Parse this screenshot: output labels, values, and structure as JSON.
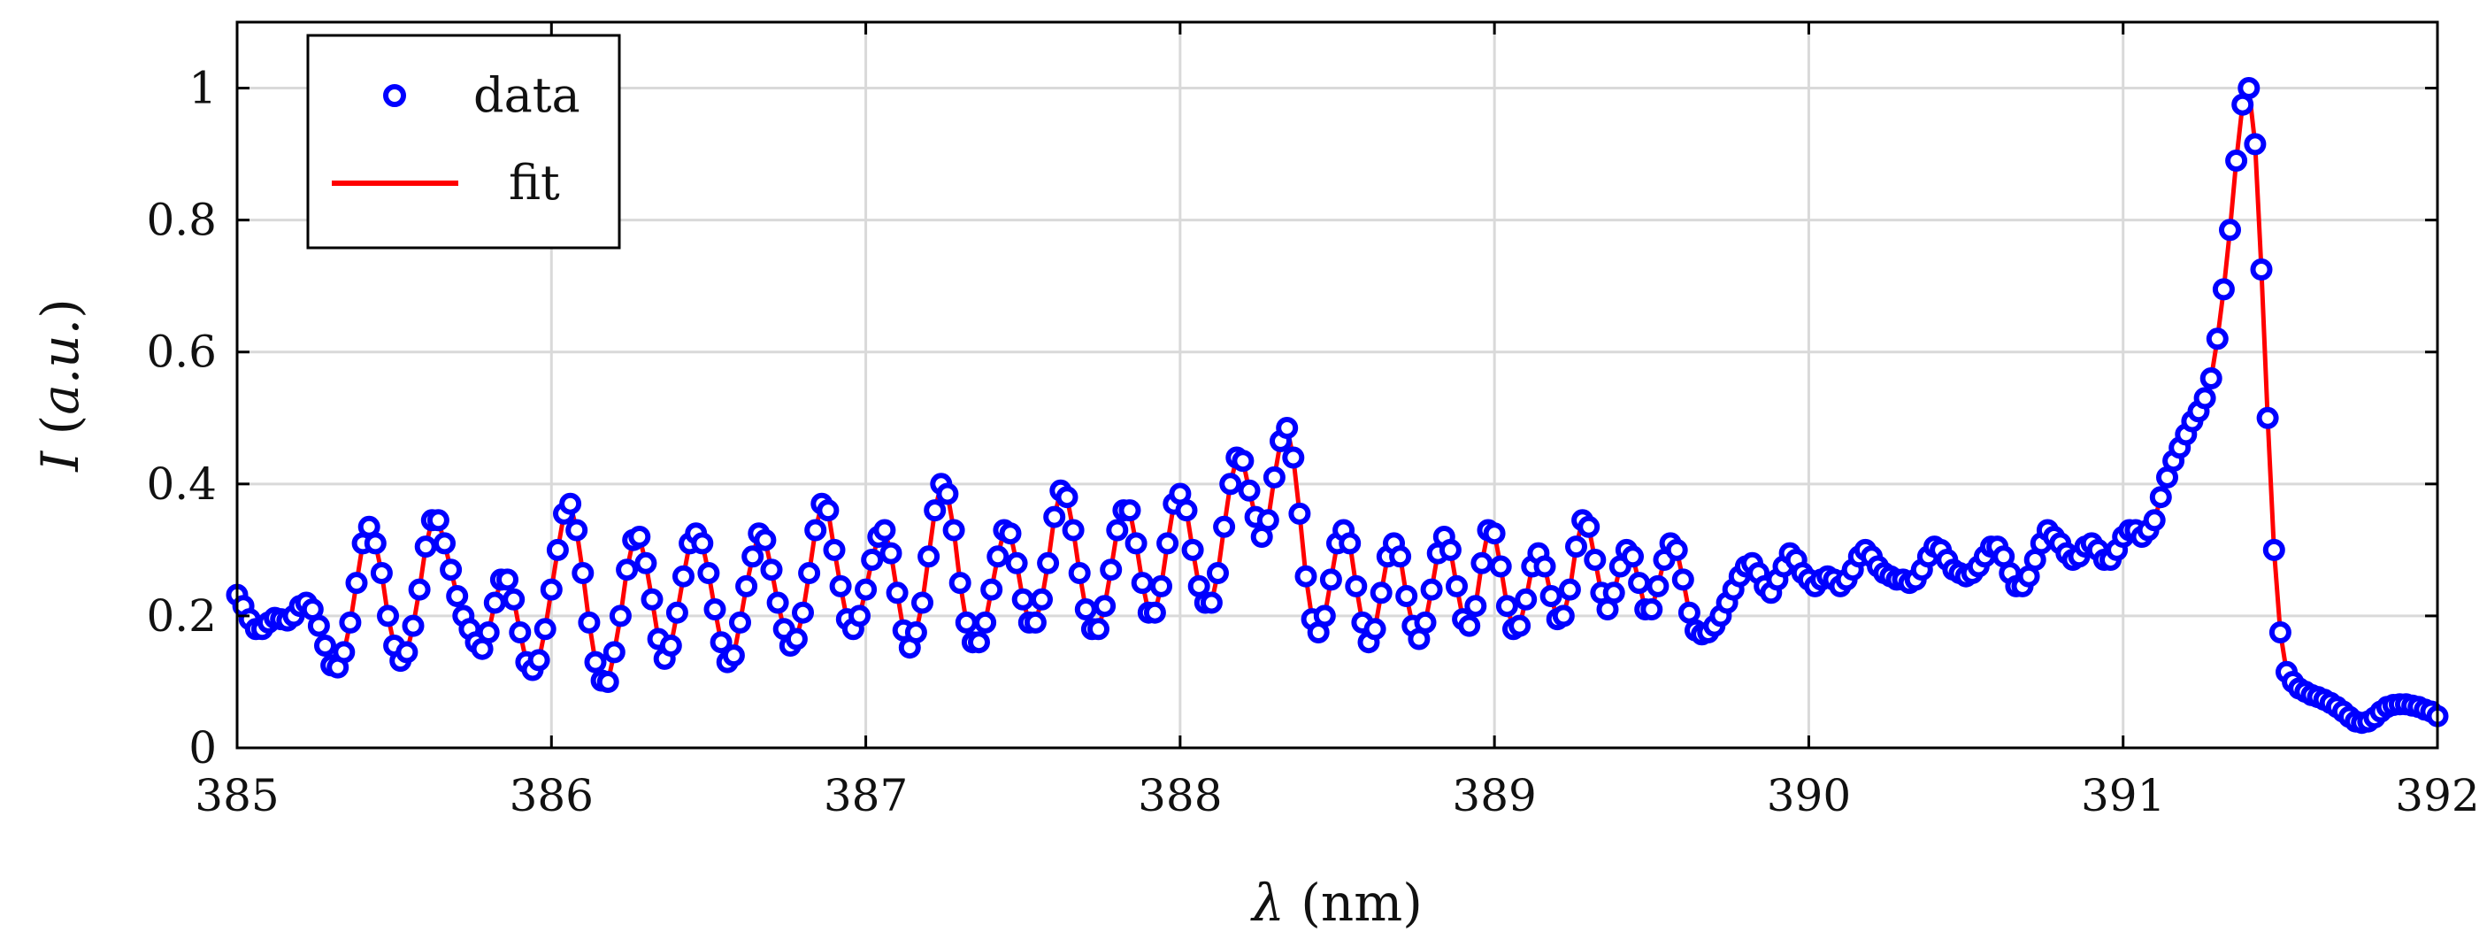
{
  "chart_data": {
    "type": "scatter",
    "xlabel": "λ (nm)",
    "xlabel_symbol": "λ",
    "xlabel_unit": " (nm)",
    "ylabel": "I (a.u.)",
    "ylabel_symbol": "I",
    "ylabel_unit_open": " (",
    "ylabel_unit_text": "a.u.",
    "ylabel_unit_close": ")",
    "xlim": [
      385,
      392
    ],
    "ylim": [
      0,
      1.1
    ],
    "x_ticks": [
      385,
      386,
      387,
      388,
      389,
      390,
      391,
      392
    ],
    "x_tick_labels": [
      "385",
      "386",
      "387",
      "388",
      "389",
      "390",
      "391",
      "392"
    ],
    "y_ticks": [
      0,
      0.2,
      0.4,
      0.6,
      0.8,
      1
    ],
    "y_tick_labels": [
      "0",
      "0.2",
      "0.4",
      "0.6",
      "0.8",
      "1"
    ],
    "grid": true,
    "legend_position": "top-left",
    "series": [
      {
        "name": "data",
        "style": "markers",
        "color": "#0000ff",
        "x": [
          385.0,
          385.02,
          385.04,
          385.06,
          385.08,
          385.1,
          385.12,
          385.14,
          385.16,
          385.18,
          385.2,
          385.22,
          385.24,
          385.26,
          385.28,
          385.3,
          385.32,
          385.34,
          385.36,
          385.38,
          385.4,
          385.42,
          385.44,
          385.46,
          385.48,
          385.5,
          385.52,
          385.54,
          385.56,
          385.58,
          385.6,
          385.62,
          385.64,
          385.66,
          385.68,
          385.7,
          385.72,
          385.74,
          385.76,
          385.78,
          385.8,
          385.82,
          385.84,
          385.86,
          385.88,
          385.9,
          385.92,
          385.94,
          385.96,
          385.98,
          386.0,
          386.02,
          386.04,
          386.06,
          386.08,
          386.1,
          386.12,
          386.14,
          386.16,
          386.18,
          386.2,
          386.22,
          386.24,
          386.26,
          386.28,
          386.3,
          386.32,
          386.34,
          386.36,
          386.38,
          386.4,
          386.42,
          386.44,
          386.46,
          386.48,
          386.5,
          386.52,
          386.54,
          386.56,
          386.58,
          386.6,
          386.62,
          386.64,
          386.66,
          386.68,
          386.7,
          386.72,
          386.74,
          386.76,
          386.78,
          386.8,
          386.82,
          386.84,
          386.86,
          386.88,
          386.9,
          386.92,
          386.94,
          386.96,
          386.98,
          387.0,
          387.02,
          387.04,
          387.06,
          387.08,
          387.1,
          387.12,
          387.14,
          387.16,
          387.18,
          387.2,
          387.22,
          387.24,
          387.26,
          387.28,
          387.3,
          387.32,
          387.34,
          387.36,
          387.38,
          387.4,
          387.42,
          387.44,
          387.46,
          387.48,
          387.5,
          387.52,
          387.54,
          387.56,
          387.58,
          387.6,
          387.62,
          387.64,
          387.66,
          387.68,
          387.7,
          387.72,
          387.74,
          387.76,
          387.78,
          387.8,
          387.82,
          387.84,
          387.86,
          387.88,
          387.9,
          387.92,
          387.94,
          387.96,
          387.98,
          388.0,
          388.02,
          388.04,
          388.06,
          388.08,
          388.1,
          388.12,
          388.14,
          388.16,
          388.18,
          388.2,
          388.22,
          388.24,
          388.26,
          388.28,
          388.3,
          388.32,
          388.34,
          388.36,
          388.38,
          388.4,
          388.42,
          388.44,
          388.46,
          388.48,
          388.5,
          388.52,
          388.54,
          388.56,
          388.58,
          388.6,
          388.62,
          388.64,
          388.66,
          388.68,
          388.7,
          388.72,
          388.74,
          388.76,
          388.78,
          388.8,
          388.82,
          388.84,
          388.86,
          388.88,
          388.9,
          388.92,
          388.94,
          388.96,
          388.98,
          389.0,
          389.02,
          389.04,
          389.06,
          389.08,
          389.1,
          389.12,
          389.14,
          389.16,
          389.18,
          389.2,
          389.22,
          389.24,
          389.26,
          389.28,
          389.3,
          389.32,
          389.34,
          389.36,
          389.38,
          389.4,
          389.42,
          389.44,
          389.46,
          389.48,
          389.5,
          389.52,
          389.54,
          389.56,
          389.58,
          389.6,
          389.62,
          389.64,
          389.66,
          389.68,
          389.7,
          389.72,
          389.74,
          389.76,
          389.78,
          389.8,
          389.82,
          389.84,
          389.86,
          389.88,
          389.9,
          389.92,
          389.94,
          389.96,
          389.98,
          390.0,
          390.02,
          390.04,
          390.06,
          390.08,
          390.1,
          390.12,
          390.14,
          390.16,
          390.18,
          390.2,
          390.22,
          390.24,
          390.26,
          390.28,
          390.3,
          390.32,
          390.34,
          390.36,
          390.38,
          390.4,
          390.42,
          390.44,
          390.46,
          390.48,
          390.5,
          390.52,
          390.54,
          390.56,
          390.58,
          390.6,
          390.62,
          390.64,
          390.66,
          390.68,
          390.7,
          390.72,
          390.74,
          390.76,
          390.78,
          390.8,
          390.82,
          390.84,
          390.86,
          390.88,
          390.9,
          390.92,
          390.94,
          390.96,
          390.98,
          391.0,
          391.02,
          391.04,
          391.06,
          391.08,
          391.1,
          391.12,
          391.14,
          391.16,
          391.18,
          391.2,
          391.22,
          391.24,
          391.26,
          391.28,
          391.3,
          391.32,
          391.34,
          391.36,
          391.38,
          391.4,
          391.42,
          391.44,
          391.46,
          391.48,
          391.5,
          391.52,
          391.54,
          391.56,
          391.58,
          391.6,
          391.62,
          391.64,
          391.66,
          391.68,
          391.7,
          391.72,
          391.74,
          391.76,
          391.78,
          391.8,
          391.82,
          391.84,
          391.86,
          391.88,
          391.9,
          391.92,
          391.94,
          391.96,
          391.98,
          392.0
        ],
        "y": [
          0.232,
          0.215,
          0.195,
          0.18,
          0.18,
          0.19,
          0.197,
          0.195,
          0.193,
          0.2,
          0.215,
          0.22,
          0.21,
          0.185,
          0.155,
          0.125,
          0.122,
          0.145,
          0.19,
          0.25,
          0.31,
          0.335,
          0.31,
          0.265,
          0.2,
          0.155,
          0.132,
          0.145,
          0.185,
          0.24,
          0.305,
          0.345,
          0.345,
          0.31,
          0.27,
          0.23,
          0.2,
          0.18,
          0.16,
          0.15,
          0.175,
          0.22,
          0.255,
          0.255,
          0.225,
          0.175,
          0.13,
          0.118,
          0.133,
          0.18,
          0.24,
          0.3,
          0.355,
          0.37,
          0.33,
          0.265,
          0.19,
          0.13,
          0.102,
          0.1,
          0.145,
          0.2,
          0.27,
          0.315,
          0.32,
          0.28,
          0.225,
          0.165,
          0.135,
          0.155,
          0.205,
          0.26,
          0.31,
          0.325,
          0.31,
          0.265,
          0.21,
          0.16,
          0.13,
          0.14,
          0.19,
          0.245,
          0.29,
          0.325,
          0.315,
          0.27,
          0.22,
          0.18,
          0.155,
          0.165,
          0.205,
          0.265,
          0.33,
          0.37,
          0.36,
          0.3,
          0.245,
          0.195,
          0.18,
          0.2,
          0.24,
          0.285,
          0.32,
          0.33,
          0.295,
          0.235,
          0.178,
          0.152,
          0.175,
          0.22,
          0.29,
          0.36,
          0.4,
          0.385,
          0.33,
          0.25,
          0.19,
          0.16,
          0.16,
          0.19,
          0.24,
          0.29,
          0.33,
          0.325,
          0.28,
          0.225,
          0.19,
          0.19,
          0.225,
          0.28,
          0.35,
          0.39,
          0.38,
          0.33,
          0.265,
          0.21,
          0.18,
          0.18,
          0.215,
          0.27,
          0.33,
          0.36,
          0.36,
          0.31,
          0.25,
          0.205,
          0.205,
          0.245,
          0.31,
          0.37,
          0.385,
          0.36,
          0.3,
          0.245,
          0.22,
          0.22,
          0.265,
          0.335,
          0.4,
          0.44,
          0.435,
          0.39,
          0.35,
          0.32,
          0.345,
          0.41,
          0.465,
          0.485,
          0.44,
          0.355,
          0.26,
          0.195,
          0.175,
          0.2,
          0.255,
          0.31,
          0.33,
          0.31,
          0.245,
          0.19,
          0.16,
          0.18,
          0.235,
          0.29,
          0.31,
          0.29,
          0.23,
          0.185,
          0.165,
          0.19,
          0.24,
          0.295,
          0.32,
          0.3,
          0.245,
          0.195,
          0.185,
          0.215,
          0.28,
          0.33,
          0.325,
          0.275,
          0.215,
          0.18,
          0.185,
          0.225,
          0.275,
          0.295,
          0.275,
          0.23,
          0.195,
          0.2,
          0.24,
          0.305,
          0.345,
          0.335,
          0.285,
          0.235,
          0.21,
          0.235,
          0.275,
          0.3,
          0.29,
          0.25,
          0.21,
          0.21,
          0.245,
          0.285,
          0.31,
          0.3,
          0.255,
          0.205,
          0.178,
          0.172,
          0.175,
          0.185,
          0.2,
          0.22,
          0.24,
          0.26,
          0.275,
          0.28,
          0.265,
          0.245,
          0.235,
          0.255,
          0.275,
          0.295,
          0.285,
          0.265,
          0.255,
          0.245,
          0.255,
          0.26,
          0.255,
          0.245,
          0.255,
          0.27,
          0.29,
          0.3,
          0.29,
          0.275,
          0.265,
          0.26,
          0.255,
          0.255,
          0.25,
          0.255,
          0.27,
          0.29,
          0.305,
          0.3,
          0.285,
          0.27,
          0.265,
          0.26,
          0.265,
          0.275,
          0.29,
          0.305,
          0.305,
          0.29,
          0.265,
          0.245,
          0.245,
          0.26,
          0.285,
          0.31,
          0.33,
          0.32,
          0.31,
          0.295,
          0.285,
          0.29,
          0.305,
          0.31,
          0.3,
          0.285,
          0.285,
          0.3,
          0.32,
          0.33,
          0.33,
          0.32,
          0.33,
          0.345,
          0.38,
          0.41,
          0.435,
          0.455,
          0.475,
          0.495,
          0.51,
          0.53,
          0.56,
          0.62,
          0.695,
          0.785,
          0.89,
          0.975,
          1.0,
          0.915,
          0.725,
          0.5,
          0.3,
          0.175,
          0.115,
          0.1,
          0.09,
          0.085,
          0.08,
          0.077,
          0.073,
          0.068,
          0.062,
          0.055,
          0.047,
          0.04,
          0.038,
          0.04,
          0.046,
          0.055,
          0.062,
          0.065,
          0.066,
          0.066,
          0.064,
          0.062,
          0.058,
          0.055,
          0.048
        ]
      },
      {
        "name": "fit",
        "style": "line",
        "color": "#ff0000"
      }
    ]
  }
}
